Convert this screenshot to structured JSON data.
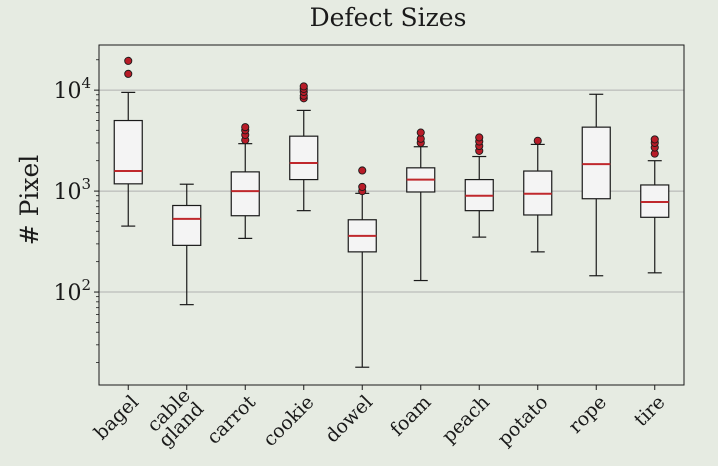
{
  "chart_data": {
    "type": "boxplot",
    "title": "Defect Sizes",
    "ylabel": "# Pixel",
    "xlabel": "",
    "yscale": "log",
    "ylim": [
      12,
      28000
    ],
    "grid": "y-major",
    "y_ticks": [
      {
        "value": 100,
        "base": "10",
        "exp": "2"
      },
      {
        "value": 1000,
        "base": "10",
        "exp": "3"
      },
      {
        "value": 10000,
        "base": "10",
        "exp": "4"
      }
    ],
    "colors": {
      "background": "#e6ebe2",
      "box_fill": "#f4f4f4",
      "median": "#c0282d",
      "outlier": "#b81c28",
      "grid": "#b0b0b0"
    },
    "categories": [
      "bagel",
      "cable gland",
      "carrot",
      "cookie",
      "dowel",
      "foam",
      "peach",
      "potato",
      "rope",
      "tire"
    ],
    "category_lines": [
      [
        "bagel"
      ],
      [
        "cable",
        "gland"
      ],
      [
        "carrot"
      ],
      [
        "cookie"
      ],
      [
        "dowel"
      ],
      [
        "foam"
      ],
      [
        "peach"
      ],
      [
        "potato"
      ],
      [
        "rope"
      ],
      [
        "tire"
      ]
    ],
    "series": [
      {
        "name": "bagel",
        "whislo": 450,
        "q1": 1180,
        "med": 1580,
        "q3": 5000,
        "whishi": 9500,
        "fliers": [
          14500,
          19500
        ]
      },
      {
        "name": "cable gland",
        "whislo": 75,
        "q1": 290,
        "med": 530,
        "q3": 720,
        "whishi": 1170,
        "fliers": []
      },
      {
        "name": "carrot",
        "whislo": 340,
        "q1": 570,
        "med": 1000,
        "q3": 1550,
        "whishi": 2950,
        "fliers": [
          3200,
          3600,
          4000,
          4300
        ]
      },
      {
        "name": "cookie",
        "whislo": 640,
        "q1": 1300,
        "med": 1900,
        "q3": 3500,
        "whishi": 6300,
        "fliers": [
          8300,
          8800,
          9600,
          10300,
          10900
        ]
      },
      {
        "name": "dowel",
        "whislo": 18,
        "q1": 250,
        "med": 360,
        "q3": 520,
        "whishi": 950,
        "fliers": [
          1000,
          1100,
          1600
        ]
      },
      {
        "name": "foam",
        "whislo": 130,
        "q1": 980,
        "med": 1300,
        "q3": 1700,
        "whishi": 2750,
        "fliers": [
          3000,
          3300,
          3800
        ]
      },
      {
        "name": "peach",
        "whislo": 350,
        "q1": 640,
        "med": 900,
        "q3": 1300,
        "whishi": 2200,
        "fliers": [
          2500,
          2800,
          3100,
          3400
        ]
      },
      {
        "name": "potato",
        "whislo": 250,
        "q1": 580,
        "med": 940,
        "q3": 1580,
        "whishi": 2900,
        "fliers": [
          3150
        ]
      },
      {
        "name": "rope",
        "whislo": 145,
        "q1": 840,
        "med": 1850,
        "q3": 4300,
        "whishi": 9100,
        "fliers": []
      },
      {
        "name": "tire",
        "whislo": 155,
        "q1": 550,
        "med": 780,
        "q3": 1150,
        "whishi": 2000,
        "fliers": [
          2350,
          2700,
          3000,
          3250
        ]
      }
    ]
  }
}
